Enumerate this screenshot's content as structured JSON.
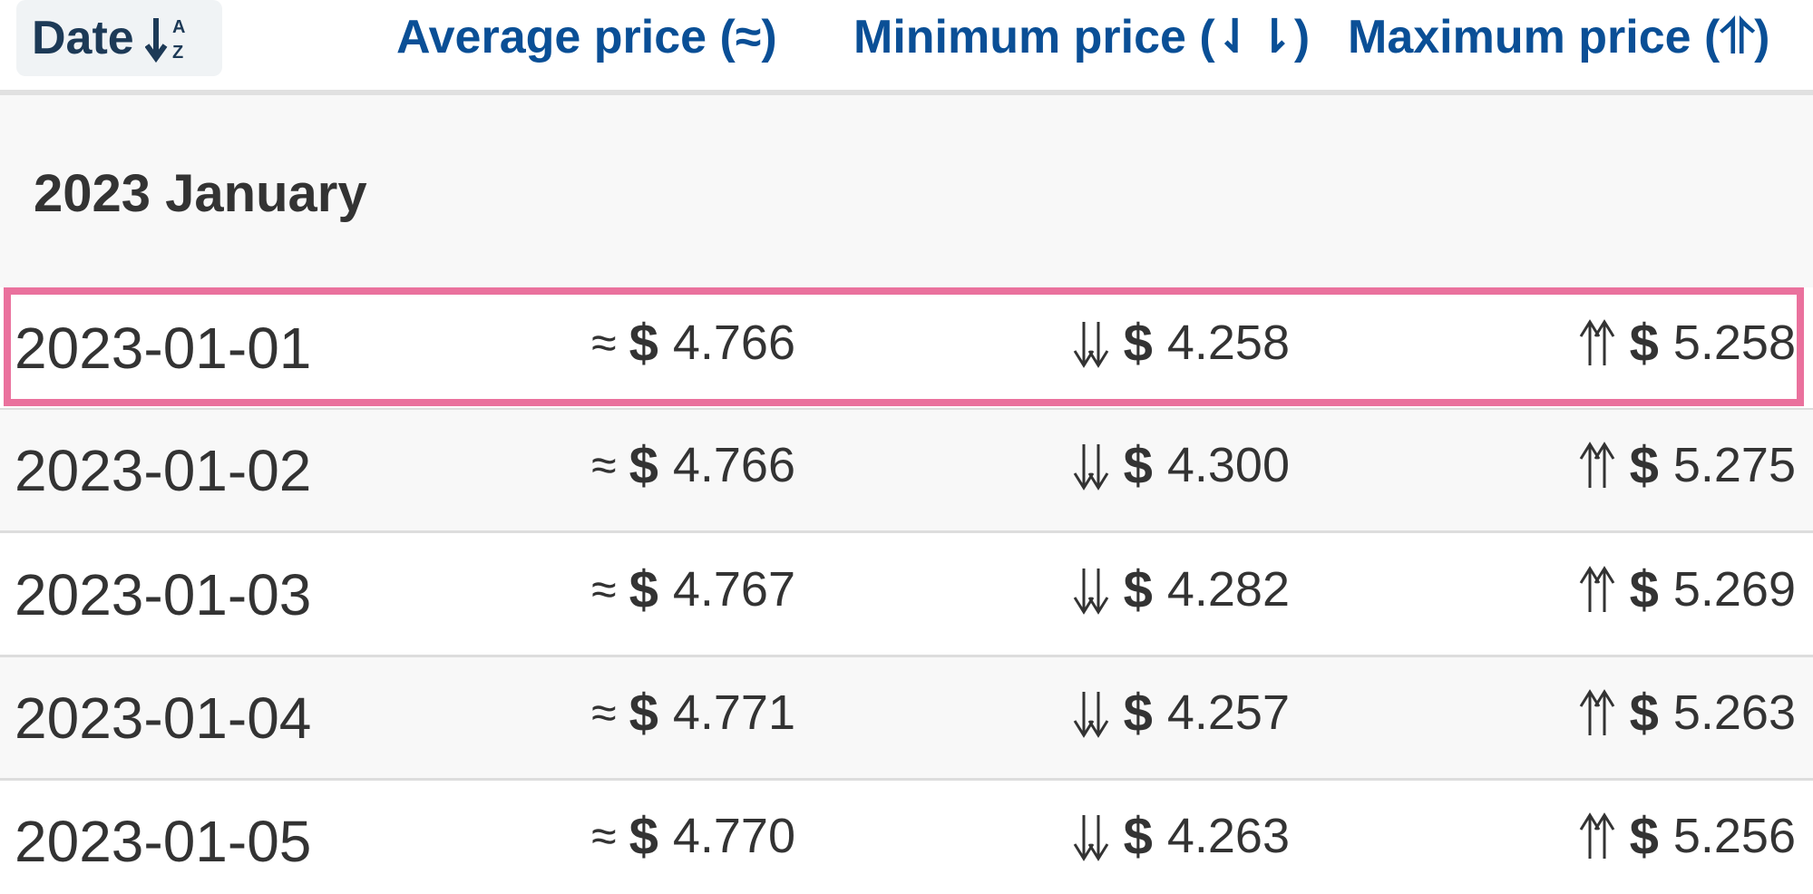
{
  "header": {
    "date_label": "Date",
    "sort_icon": "sort-az-descending-icon",
    "avg_label": "Average price (≈)",
    "min_label": "Minimum price (⇃⇂)",
    "max_label": "Maximum price (⥣)"
  },
  "group": {
    "title": "2023 January"
  },
  "symbols": {
    "approx": "≈",
    "currency": "$"
  },
  "rows": [
    {
      "date": "2023-01-01",
      "avg": "4.766",
      "min": "4.258",
      "max": "5.258",
      "highlighted": true
    },
    {
      "date": "2023-01-02",
      "avg": "4.766",
      "min": "4.300",
      "max": "5.275",
      "highlighted": false
    },
    {
      "date": "2023-01-03",
      "avg": "4.767",
      "min": "4.282",
      "max": "5.269",
      "highlighted": false
    },
    {
      "date": "2023-01-04",
      "avg": "4.771",
      "min": "4.257",
      "max": "5.263",
      "highlighted": false
    },
    {
      "date": "2023-01-05",
      "avg": "4.770",
      "min": "4.263",
      "max": "5.256",
      "highlighted": false
    }
  ],
  "colors": {
    "header_text": "#0a4f96",
    "date_header_text": "#1d3a57",
    "highlight_border": "#ea719d",
    "row_alt_bg": "#f8f8f8"
  }
}
